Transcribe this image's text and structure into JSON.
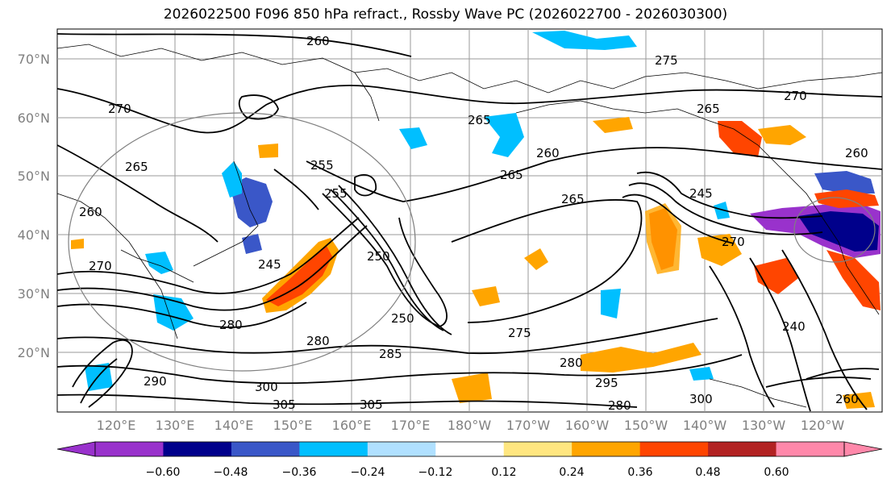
{
  "title": "2026022500 F096 850 hPa refract., Rossby Wave PC (2026022700 - 2026030300)",
  "map": {
    "lat_labels": [
      "70°N",
      "60°N",
      "50°N",
      "40°N",
      "30°N",
      "20°N"
    ],
    "lon_labels": [
      "120°E",
      "130°E",
      "140°E",
      "150°E",
      "160°E",
      "170°E",
      "180°W",
      "170°W",
      "160°W",
      "150°W",
      "140°W",
      "130°W",
      "120°W"
    ],
    "contour_labels": [
      "260",
      "275",
      "270",
      "265",
      "270",
      "265",
      "260",
      "265",
      "260",
      "255",
      "255",
      "265",
      "245",
      "270",
      "250",
      "245",
      "260",
      "265",
      "270",
      "280",
      "280",
      "285",
      "250",
      "275",
      "280",
      "295",
      "300",
      "305",
      "305",
      "240",
      "280",
      "290",
      "300",
      "260"
    ]
  },
  "colorbar": {
    "ticks": [
      "−0.60",
      "−0.48",
      "−0.36",
      "−0.24",
      "−0.12",
      "0.12",
      "0.24",
      "0.36",
      "0.48",
      "0.60"
    ],
    "colors": [
      "#9932cc",
      "#00008b",
      "#3a57c8",
      "#00bfff",
      "#b0e0ff",
      "#ffffff",
      "#ffe680",
      "#ffa500",
      "#ff4500",
      "#b22222",
      "#ff88aa"
    ]
  }
}
